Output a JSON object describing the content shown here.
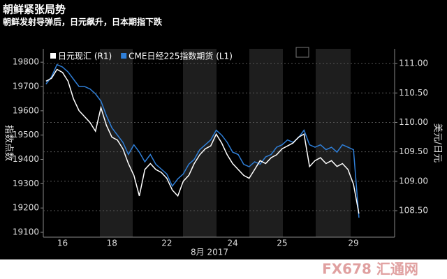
{
  "chart_data": {
    "type": "line",
    "title": "朝鲜紧张局势",
    "subtitle": "朝鲜发射导弹后，日元飙升，日本期指下跌",
    "x_label": "8月 2017",
    "y_label": "指数点数",
    "y2_label": "美元/日元",
    "watermark": "FX678 汇通网",
    "categories": [
      null,
      null,
      null,
      "16",
      null,
      null,
      null,
      null,
      null,
      null,
      null,
      null,
      "18",
      null,
      null,
      null,
      null,
      null,
      null,
      null,
      null,
      null,
      "22",
      null,
      null,
      null,
      null,
      null,
      null,
      null,
      null,
      null,
      null,
      null,
      "24",
      null,
      null,
      null,
      null,
      null,
      null,
      null,
      null,
      "25",
      null,
      null,
      null,
      null,
      null,
      null,
      null,
      null,
      null,
      null,
      null,
      null,
      "29",
      null,
      null,
      null,
      null,
      null,
      null,
      null
    ],
    "series": [
      {
        "name": "日元现汇 (R1)",
        "color": "#ffffff",
        "axis": "y2",
        "values": [
          110.7,
          110.75,
          110.9,
          110.85,
          110.7,
          110.4,
          110.2,
          110.1,
          110.0,
          109.85,
          110.25,
          109.95,
          109.75,
          109.7,
          109.55,
          109.3,
          109.1,
          108.75,
          109.2,
          109.3,
          109.2,
          109.15,
          109.05,
          108.85,
          108.75,
          109.0,
          109.1,
          109.3,
          109.45,
          109.55,
          109.6,
          109.8,
          109.65,
          109.45,
          109.3,
          109.2,
          109.1,
          109.05,
          109.2,
          109.35,
          109.3,
          109.4,
          109.45,
          109.55,
          109.6,
          109.65,
          109.75,
          109.8,
          109.25,
          109.35,
          109.4,
          109.3,
          109.35,
          109.25,
          109.3,
          109.2,
          108.95,
          108.45,
          null,
          null,
          null,
          null,
          null,
          null
        ]
      },
      {
        "name": "CME日经225指数期货 (L1)",
        "color": "#2f7fd8",
        "values": [
          19710,
          19740,
          19790,
          19780,
          19760,
          19730,
          19700,
          19700,
          19690,
          19670,
          19640,
          19580,
          19530,
          19500,
          19470,
          19420,
          19460,
          19430,
          19390,
          19420,
          19380,
          19360,
          19340,
          19290,
          19320,
          19340,
          19380,
          19400,
          19440,
          19460,
          19480,
          19520,
          19500,
          19470,
          19430,
          19420,
          19380,
          19370,
          19390,
          19380,
          19410,
          19420,
          19450,
          19460,
          19480,
          19470,
          19490,
          19520,
          19460,
          19450,
          19460,
          19440,
          19450,
          19430,
          19460,
          19450,
          19440,
          19160,
          null,
          null,
          null,
          null,
          null,
          null
        ]
      }
    ],
    "ylim": [
      19080,
      19855
    ],
    "yticks": [
      19100,
      19200,
      19300,
      19400,
      19500,
      19600,
      19700,
      19800
    ],
    "y2lim": [
      108.05,
      111.25
    ],
    "y2ticks": [
      {
        "value": 108.5,
        "label": "108.50"
      },
      {
        "value": 109,
        "label": "109.00"
      },
      {
        "value": 109.5,
        "label": "109.50"
      },
      {
        "value": 110,
        "label": "110.00"
      },
      {
        "value": 110.5,
        "label": "110.50"
      },
      {
        "value": 111,
        "label": "111.00"
      }
    ],
    "grid": true
  }
}
